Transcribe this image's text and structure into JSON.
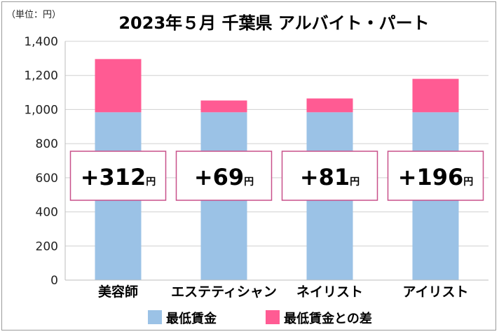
{
  "chart_data": {
    "type": "bar",
    "stacked": true,
    "title": "2023年５月 千葉県 アルバイト・パート",
    "unit_label": "（単位：円）",
    "categories": [
      "美容師",
      "エステティシャン",
      "ネイリスト",
      "アイリスト"
    ],
    "series": [
      {
        "name": "最低賃金",
        "values": [
          984,
          984,
          984,
          984
        ],
        "color": "#9bc2e6"
      },
      {
        "name": "最低賃金との差",
        "values": [
          312,
          69,
          81,
          196
        ],
        "color": "#ff5b93"
      }
    ],
    "diff_labels": [
      {
        "value": "+312",
        "unit": "円"
      },
      {
        "value": "+69",
        "unit": "円"
      },
      {
        "value": "+81",
        "unit": "円"
      },
      {
        "value": "+196",
        "unit": "円"
      }
    ],
    "ylim": [
      0,
      1400
    ],
    "yticks": [
      0,
      200,
      400,
      600,
      800,
      1000,
      1200,
      1400
    ],
    "ytick_labels": [
      "0",
      "200",
      "400",
      "600",
      "800",
      "1,000",
      "1,200",
      "1,400"
    ],
    "grid": true,
    "legend_position": "bottom",
    "label_border_color": "#c8508a"
  }
}
